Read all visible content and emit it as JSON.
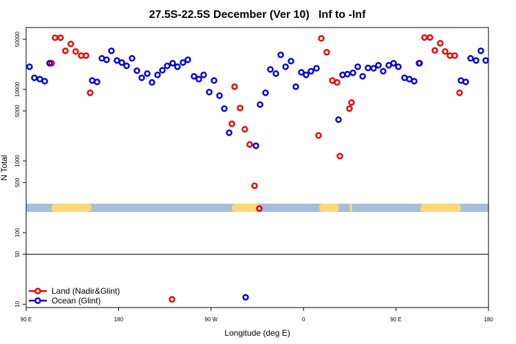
{
  "chart_data": {
    "type": "scatter",
    "title": "27.5S-22.5S December (Ver 10)   Inf to -Inf",
    "xlabel": "Longitude (deg E)",
    "ylabel": "N Total",
    "xlim": [
      90,
      540
    ],
    "ylim": [
      9,
      73000
    ],
    "log_y": true,
    "xticks": [
      {
        "value": 90,
        "label": "90 E"
      },
      180,
      {
        "value": 270,
        "label": "90 W"
      },
      {
        "value": 360,
        "label": "0"
      },
      {
        "value": 450,
        "label": "90 E"
      },
      {
        "value": 540,
        "label": "180"
      }
    ],
    "yticks": [
      10,
      50,
      100,
      500,
      1000,
      5000,
      10000,
      50000
    ],
    "hline": 50,
    "legend": "bottom-left",
    "mask": {
      "y": 222,
      "ocean_color": "#a6bddb",
      "land_color": "#fed976",
      "land_ranges": [
        [
          114.8,
          153.6
        ],
        [
          290.3,
          317.0
        ],
        [
          375.3,
          394.7
        ],
        [
          404.7,
          407.4
        ],
        [
          473.7,
          513.2
        ]
      ]
    },
    "series": [
      {
        "name": "Land (Nadir&Glint)",
        "color": "#ee0000",
        "x": [
          114.8,
          118.1,
          123.5,
          128.2,
          133.5,
          138.2,
          143.6,
          148.3,
          152.3,
          292.9,
          290.3,
          298.3,
          302.9,
          307.6,
          312.3,
          317.0,
          232.0,
          374.6,
          377.3,
          382.6,
          388.0,
          392.7,
          395.4,
          404.7,
          406.7,
          473.1,
          477.7,
          483.1,
          487.8,
          493.1,
          497.8,
          502.5,
          507.2,
          511.9
        ],
        "values": [
          23200,
          52600,
          52600,
          34500,
          43100,
          33800,
          29600,
          29600,
          8950,
          10900,
          3300,
          5490,
          2770,
          1700,
          451,
          217,
          11.7,
          2270,
          51500,
          33000,
          13300,
          12500,
          1170,
          5380,
          6560,
          23200,
          53000,
          53000,
          35000,
          44000,
          33800,
          29600,
          29600,
          8950
        ]
      },
      {
        "name": "Ocean (Glint)",
        "color": "#0000dd",
        "x": [
          93.3,
          98.0,
          103.4,
          108.1,
          112.8,
          154.3,
          159.0,
          163.7,
          168.3,
          173.0,
          178.4,
          183.1,
          187.8,
          193.1,
          197.8,
          202.5,
          207.9,
          212.5,
          217.9,
          222.6,
          227.3,
          232.6,
          237.3,
          242.7,
          247.4,
          253.4,
          258.1,
          262.8,
          268.2,
          272.9,
          278.2,
          282.9,
          287.6,
          313.7,
          317.7,
          323.0,
          327.7,
          333.1,
          337.8,
          342.5,
          347.8,
          352.5,
          357.9,
          362.5,
          367.2,
          372.6,
          394.0,
          398.0,
          402.7,
          408.1,
          412.8,
          417.5,
          422.8,
          428.2,
          432.9,
          437.5,
          442.9,
          447.6,
          452.3,
          458.3,
          463.0,
          467.7,
          472.4,
          513.2,
          517.9,
          522.6,
          527.9,
          532.6,
          537.3,
          303.6
        ],
        "values": [
          20700,
          14500,
          13900,
          13000,
          23200,
          13300,
          12700,
          27100,
          25900,
          34500,
          25300,
          23700,
          21300,
          27100,
          18200,
          14500,
          16600,
          12500,
          15900,
          18500,
          21300,
          23200,
          20700,
          23700,
          25900,
          15200,
          13900,
          15900,
          9160,
          13300,
          8180,
          5380,
          2480,
          1630,
          6140,
          8950,
          19000,
          16600,
          30300,
          20700,
          24800,
          10900,
          17300,
          15900,
          17900,
          19700,
          3780,
          15900,
          16300,
          17000,
          20700,
          15200,
          19900,
          19700,
          21700,
          17900,
          21700,
          23200,
          20700,
          14500,
          13900,
          13000,
          23200,
          13300,
          12700,
          27100,
          25300,
          34500,
          25300,
          12.5
        ]
      }
    ]
  }
}
